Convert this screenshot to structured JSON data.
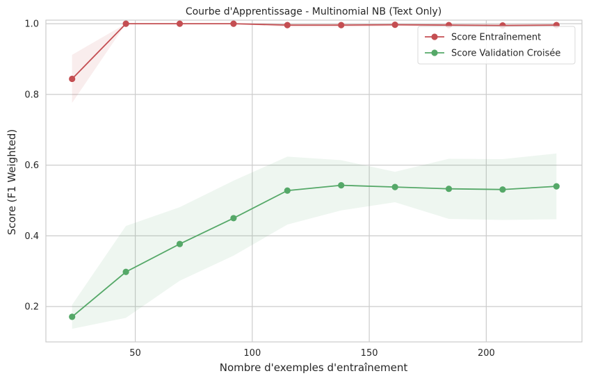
{
  "chart_data": {
    "type": "line",
    "title": "Courbe d'Apprentissage - Multinomial NB (Text Only)",
    "xlabel": "Nombre d'exemples d'entraînement",
    "ylabel": "Score (F1 Weighted)",
    "xlim": [
      11.8,
      240.9
    ],
    "ylim": [
      0.1,
      1.01
    ],
    "x_ticks": [
      50,
      100,
      150,
      200
    ],
    "y_ticks": [
      0.2,
      0.4,
      0.6,
      0.8,
      1.0
    ],
    "grid": true,
    "legend_position": "top-right",
    "x": [
      23,
      46,
      69,
      92,
      115,
      138,
      161,
      184,
      207,
      230
    ],
    "series": [
      {
        "name": "Score Entraînement",
        "color": "#c44e52",
        "values": [
          0.844,
          1.0,
          1.0,
          1.0,
          0.996,
          0.996,
          0.997,
          0.996,
          0.995,
          0.996
        ],
        "lower": [
          0.776,
          1.0,
          1.0,
          1.0,
          0.99,
          0.99,
          0.993,
          0.992,
          0.991,
          0.992
        ],
        "upper": [
          0.912,
          1.0,
          1.0,
          1.0,
          1.0,
          1.0,
          1.0,
          1.0,
          0.999,
          1.0
        ]
      },
      {
        "name": "Score Validation Croisée",
        "color": "#55a868",
        "values": [
          0.171,
          0.298,
          0.377,
          0.45,
          0.528,
          0.543,
          0.538,
          0.533,
          0.531,
          0.54
        ],
        "lower": [
          0.137,
          0.168,
          0.273,
          0.344,
          0.432,
          0.472,
          0.495,
          0.448,
          0.445,
          0.447
        ],
        "upper": [
          0.205,
          0.428,
          0.481,
          0.556,
          0.624,
          0.614,
          0.581,
          0.618,
          0.617,
          0.633
        ]
      }
    ]
  }
}
